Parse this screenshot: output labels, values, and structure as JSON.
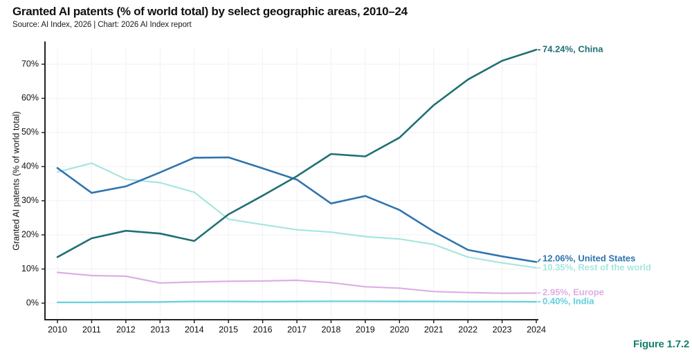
{
  "header": {
    "title": "Granted AI patents (% of world total) by select geographic areas, 2010–24",
    "source": "Source: AI Index, 2026 | Chart: 2026 AI Index report"
  },
  "figure": {
    "label": "Figure 1.7.2",
    "color": "#16806b"
  },
  "chart_data": {
    "type": "line",
    "title": "Granted AI patents (% of world total) by select geographic areas, 2010–24",
    "xlabel": "",
    "ylabel": "Granted AI patents (% of world total)",
    "x": [
      2010,
      2011,
      2012,
      2013,
      2014,
      2015,
      2016,
      2017,
      2018,
      2019,
      2020,
      2021,
      2022,
      2023,
      2024
    ],
    "ylim": [
      0,
      75
    ],
    "yticks": [
      0,
      10,
      20,
      30,
      40,
      50,
      60,
      70
    ],
    "ytick_suffix": "%",
    "grid": true,
    "grid_color": "#f1f1f6",
    "axis_color": "#222222",
    "tick_text_color": "#111111",
    "legend_position": "right-end-labels",
    "series": [
      {
        "name": "China",
        "color": "#1f7072",
        "line_width": 2.6,
        "end_label": "74.24%, China",
        "values": [
          13.5,
          19.0,
          21.2,
          20.4,
          18.2,
          26.0,
          31.5,
          37.2,
          43.7,
          43.0,
          48.5,
          58.0,
          65.5,
          71.0,
          74.24
        ]
      },
      {
        "name": "United States",
        "color": "#2f74ae",
        "line_width": 2.6,
        "end_label": "12.06%, United States",
        "values": [
          39.6,
          32.3,
          34.2,
          38.3,
          42.6,
          42.7,
          39.5,
          36.2,
          29.2,
          31.4,
          27.3,
          21.0,
          15.6,
          13.7,
          12.06
        ]
      },
      {
        "name": "Rest of the world",
        "color": "#a6e6df",
        "line_width": 2.2,
        "end_label": "10.35%, Rest of the world",
        "values": [
          38.4,
          41.0,
          36.3,
          35.3,
          32.5,
          24.6,
          23.0,
          21.5,
          20.8,
          19.5,
          18.8,
          17.2,
          13.5,
          11.8,
          10.35
        ]
      },
      {
        "name": "Europe",
        "color": "#dcaee4",
        "line_width": 2.2,
        "end_label": "2.95%, Europe",
        "values": [
          9.0,
          8.1,
          7.9,
          5.9,
          6.2,
          6.4,
          6.5,
          6.7,
          6.0,
          4.8,
          4.4,
          3.4,
          3.1,
          2.9,
          2.95
        ]
      },
      {
        "name": "India",
        "color": "#5ed0dc",
        "line_width": 2.2,
        "end_label": "0.40%, India",
        "values": [
          0.25,
          0.25,
          0.3,
          0.35,
          0.5,
          0.5,
          0.45,
          0.5,
          0.55,
          0.55,
          0.5,
          0.5,
          0.45,
          0.45,
          0.4
        ]
      }
    ]
  }
}
